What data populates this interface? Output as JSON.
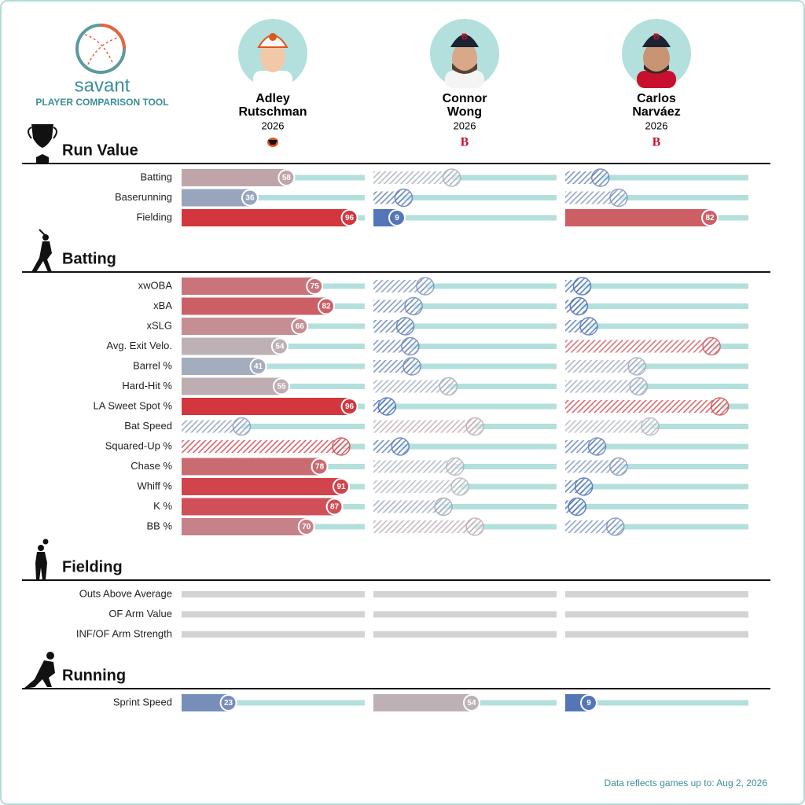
{
  "logo": {
    "name": "savant",
    "subtitle": "PLAYER COMPARISON TOOL"
  },
  "players": [
    {
      "first": "Adley",
      "last": "Rutschman",
      "season": "2026"
    },
    {
      "first": "Connor",
      "last": "Wong",
      "season": "2026"
    },
    {
      "first": "Carlos",
      "last": "Narváez",
      "season": "2026"
    }
  ],
  "color_scale": [
    "#3d66b7",
    "#bbbdc0",
    "#d62a33"
  ],
  "track_color": "#b3e0dc",
  "empty_color": "#d3d3d3",
  "sections": [
    {
      "title": "Run Value",
      "metrics": [
        {
          "name": "Batting",
          "percentiles": [
            58,
            42,
            16
          ],
          "qualified": [
            true,
            false,
            false
          ]
        },
        {
          "name": "Baserunning",
          "percentiles": [
            36,
            13,
            27
          ],
          "qualified": [
            true,
            false,
            false
          ]
        },
        {
          "name": "Fielding",
          "percentiles": [
            96,
            9,
            82
          ],
          "qualified": [
            true,
            true,
            true
          ]
        }
      ]
    },
    {
      "title": "Batting",
      "metrics": [
        {
          "name": "xwOBA",
          "percentiles": [
            75,
            26,
            5
          ],
          "qualified": [
            true,
            false,
            false
          ]
        },
        {
          "name": "xBA",
          "percentiles": [
            82,
            19,
            3
          ],
          "qualified": [
            true,
            false,
            false
          ]
        },
        {
          "name": "xSLG",
          "percentiles": [
            66,
            14,
            9
          ],
          "qualified": [
            true,
            false,
            false
          ]
        },
        {
          "name": "Avg. Exit Velo.",
          "percentiles": [
            54,
            17,
            83
          ],
          "qualified": [
            true,
            false,
            false
          ]
        },
        {
          "name": "Barrel %",
          "percentiles": [
            41,
            18,
            38
          ],
          "qualified": [
            true,
            false,
            false
          ]
        },
        {
          "name": "Hard-Hit %",
          "percentiles": [
            55,
            40,
            39
          ],
          "qualified": [
            true,
            false,
            false
          ]
        },
        {
          "name": "LA Sweet Spot %",
          "percentiles": [
            96,
            3,
            88
          ],
          "qualified": [
            true,
            false,
            false
          ]
        },
        {
          "name": "Bat Speed",
          "percentiles": [
            31,
            56,
            46
          ],
          "qualified": [
            false,
            false,
            false
          ]
        },
        {
          "name": "Squared-Up %",
          "percentiles": [
            91,
            11,
            14
          ],
          "qualified": [
            false,
            false,
            false
          ]
        },
        {
          "name": "Chase %",
          "percentiles": [
            78,
            44,
            27
          ],
          "qualified": [
            true,
            false,
            false
          ]
        },
        {
          "name": "Whiff %",
          "percentiles": [
            91,
            47,
            6
          ],
          "qualified": [
            true,
            false,
            false
          ]
        },
        {
          "name": "K %",
          "percentiles": [
            87,
            37,
            2
          ],
          "qualified": [
            true,
            false,
            false
          ]
        },
        {
          "name": "BB %",
          "percentiles": [
            70,
            56,
            25
          ],
          "qualified": [
            true,
            false,
            false
          ]
        }
      ]
    },
    {
      "title": "Fielding",
      "metrics": [
        {
          "name": "Outs Above Average",
          "percentiles": [
            null,
            null,
            null
          ],
          "qualified": [
            false,
            false,
            false
          ]
        },
        {
          "name": "OF Arm Value",
          "percentiles": [
            null,
            null,
            null
          ],
          "qualified": [
            false,
            false,
            false
          ]
        },
        {
          "name": "INF/OF Arm Strength",
          "percentiles": [
            null,
            null,
            null
          ],
          "qualified": [
            false,
            false,
            false
          ]
        }
      ]
    },
    {
      "title": "Running",
      "metrics": [
        {
          "name": "Sprint Speed",
          "percentiles": [
            23,
            54,
            9
          ],
          "qualified": [
            true,
            true,
            true
          ]
        }
      ]
    }
  ],
  "footer": "Data reflects games up to: Aug 2, 2026"
}
